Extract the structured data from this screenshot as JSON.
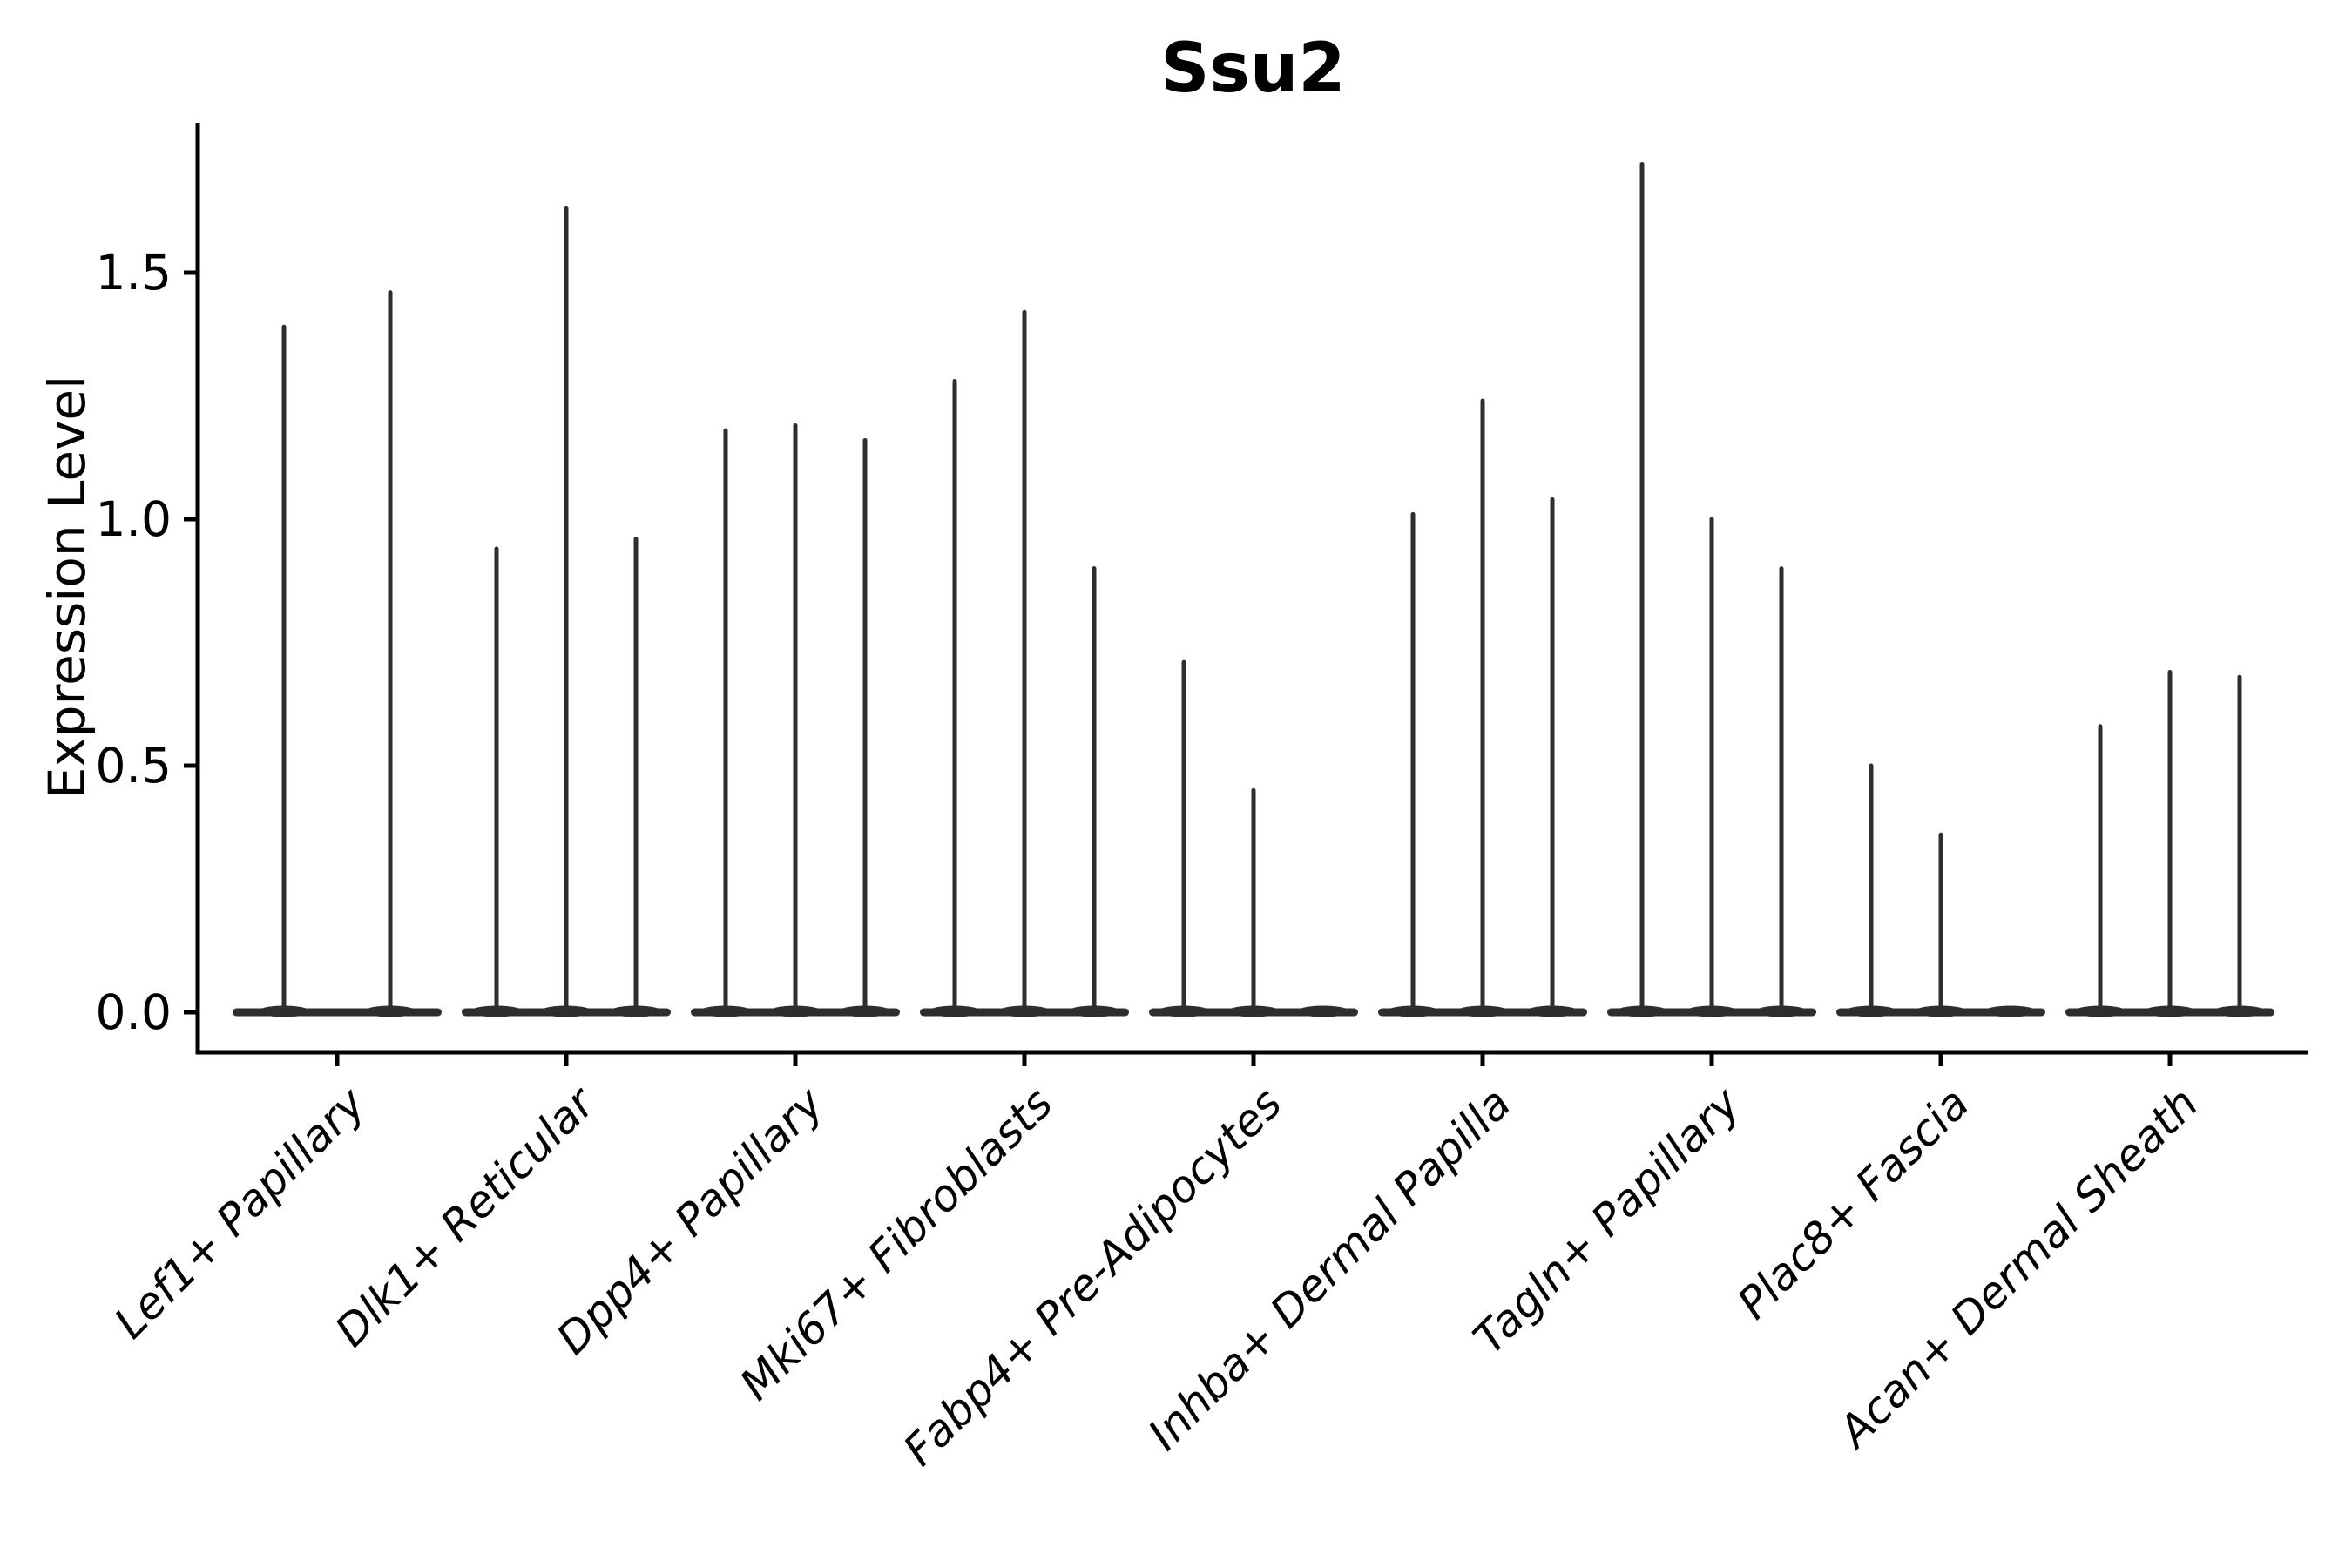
{
  "figure": {
    "background": "#ffffff"
  },
  "chart_data": {
    "type": "violin",
    "title": "Ssu2",
    "xlabel": "",
    "ylabel": "Expression Level",
    "ylim": [
      -0.08,
      1.8
    ],
    "yticks": [
      0.0,
      0.5,
      1.0,
      1.5
    ],
    "ytick_labels": [
      "0.0",
      "0.5",
      "1.0",
      "1.5"
    ],
    "grid": false,
    "legend_position": "none",
    "violin_color": "#2e2e2e",
    "axis_color": "#000000",
    "text_color": "#000000",
    "categories": [
      "Lef1+ Papillary",
      "Dlk1+ Reticular",
      "Dpp4+ Papillary",
      "Mki67+ Fibroblasts",
      "Fabp4+ Pre-Adipocytes",
      "Inhba+ Dermal Papilla",
      "Tagln+ Papillary",
      "Plac8+ Fascia",
      "Acan+ Dermal Sheath"
    ],
    "groups": [
      {
        "label": "Lef1+ Papillary",
        "max_values": [
          1.39,
          1.46
        ]
      },
      {
        "label": "Dlk1+ Reticular",
        "max_values": [
          0.94,
          1.63,
          0.96
        ]
      },
      {
        "label": "Dpp4+ Papillary",
        "max_values": [
          1.18,
          1.19,
          1.16
        ]
      },
      {
        "label": "Mki67+ Fibroblasts",
        "max_values": [
          1.28,
          1.42,
          0.9
        ]
      },
      {
        "label": "Fabp4+ Pre-Adipocytes",
        "max_values": [
          0.71,
          0.45,
          0.0
        ]
      },
      {
        "label": "Inhba+ Dermal Papilla",
        "max_values": [
          1.01,
          1.24,
          1.04
        ]
      },
      {
        "label": "Tagln+ Papillary",
        "max_values": [
          1.72,
          1.0,
          0.9
        ]
      },
      {
        "label": "Plac8+ Fascia",
        "max_values": [
          0.5,
          0.36,
          0.0
        ]
      },
      {
        "label": "Acan+ Dermal Sheath",
        "max_values": [
          0.58,
          0.69,
          0.68
        ]
      }
    ]
  }
}
